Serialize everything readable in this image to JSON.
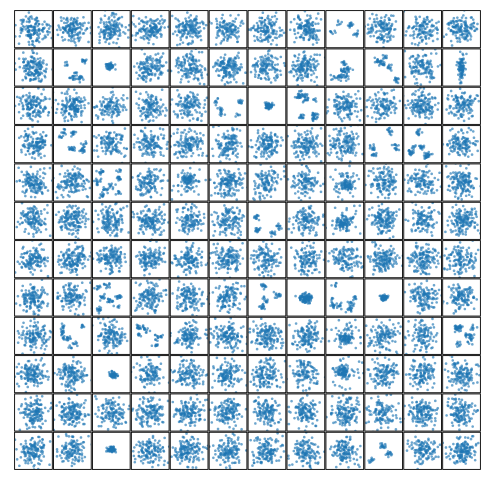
{
  "chart_data": {
    "type": "scatter",
    "layout": {
      "rows": 12,
      "cols": 12
    },
    "title": "",
    "xlabel": "",
    "ylabel": "",
    "axes_ticks": "none",
    "grid": false,
    "legend": "none",
    "marker_color": "#1f77b4",
    "marker_alpha": 0.65,
    "frame_color": "#000000",
    "background": "#ffffff",
    "panel_patterns": [
      "sc",
      "sc",
      "sc",
      "sc",
      "sc",
      "sc",
      "sc",
      "sc",
      "cl",
      "sc",
      "sc",
      "sc",
      "sc",
      "cl",
      "bl",
      "sc",
      "sc",
      "sc",
      "sc",
      "sc",
      "cl",
      "cl",
      "sc",
      "vs",
      "sc",
      "sc",
      "sc",
      "sc",
      "sc",
      "cl",
      "bl",
      "cl",
      "sc",
      "sc",
      "sc",
      "sc",
      "sc",
      "cl",
      "sc",
      "sc",
      "sc",
      "sc",
      "sc",
      "sc",
      "sc",
      "cl",
      "cl",
      "sc",
      "sc",
      "sc",
      "cl",
      "sc",
      "dn",
      "sc",
      "sc",
      "sc",
      "dn",
      "sc",
      "sc",
      "sc",
      "sc",
      "sc",
      "sc",
      "sc",
      "sc",
      "sc",
      "cl",
      "sc",
      "dn",
      "sc",
      "sc",
      "sc",
      "sc",
      "sc",
      "sc",
      "sc",
      "sc",
      "sc",
      "sc",
      "sc",
      "sc",
      "sc",
      "sc",
      "sc",
      "sc",
      "sc",
      "cl",
      "sc",
      "sc",
      "sc",
      "cl",
      "cb",
      "cl",
      "bl",
      "sc",
      "sc",
      "sc",
      "cl",
      "sc",
      "cl",
      "sc",
      "sc",
      "sc",
      "sc",
      "dn",
      "sc",
      "sc",
      "cl",
      "sc",
      "sc",
      "bl",
      "sc",
      "sc",
      "sc",
      "sc",
      "sc",
      "dn",
      "sc",
      "sc",
      "sc",
      "sc",
      "sc",
      "sc",
      "sc",
      "sc",
      "sc",
      "sc",
      "sc",
      "sc",
      "sc",
      "sc",
      "sc",
      "sc",
      "sc",
      "bl",
      "sc",
      "sc",
      "sc",
      "sc",
      "sc",
      "sc",
      "cl",
      "sc",
      "sc"
    ]
  }
}
